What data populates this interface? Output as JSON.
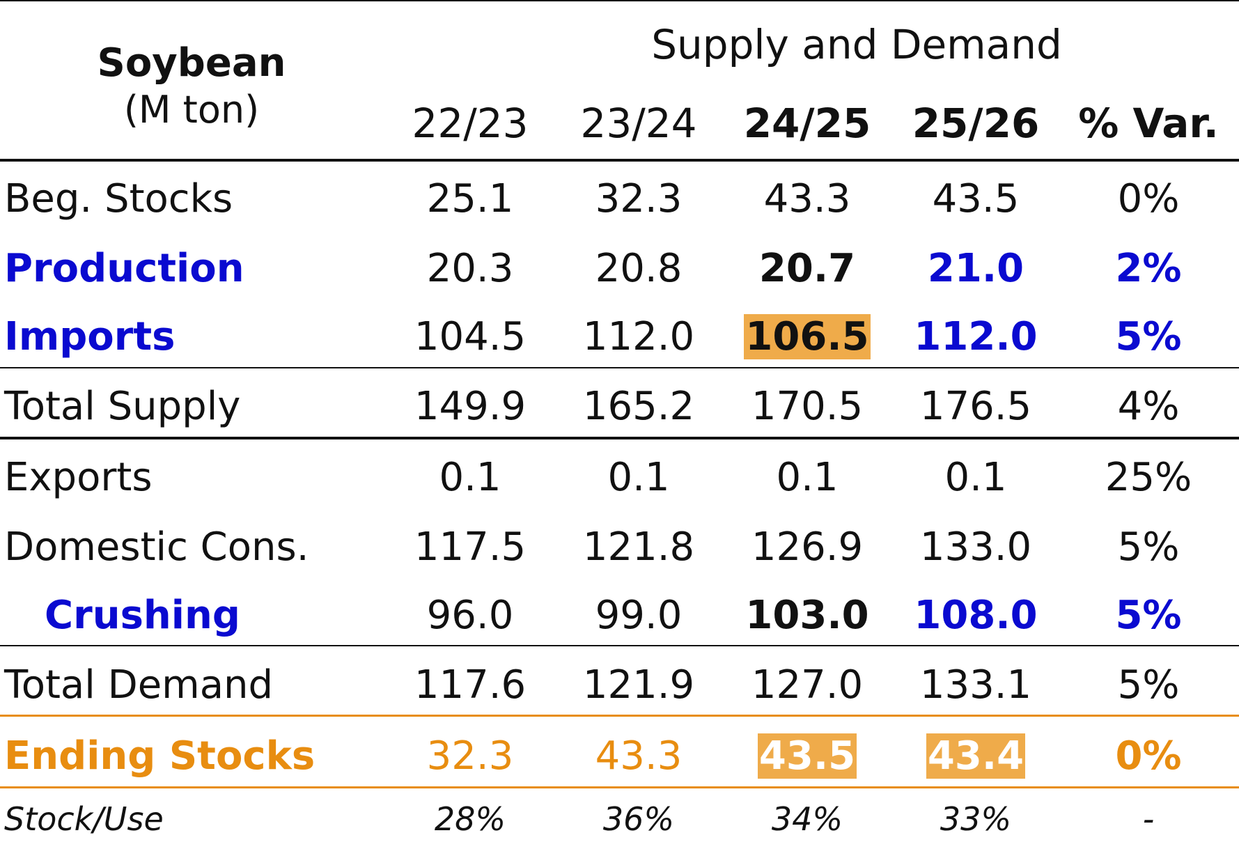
{
  "header": {
    "title": "Soybean",
    "unit": "(M ton)",
    "group": "Supply and Demand",
    "columns": [
      "22/23",
      "23/24",
      "24/25",
      "25/26",
      "% Var."
    ]
  },
  "rows": [
    {
      "label": "Beg. Stocks",
      "values": [
        "25.1",
        "32.3",
        "43.3",
        "43.5",
        "0%"
      ]
    },
    {
      "label": "Production",
      "values": [
        "20.3",
        "20.8",
        "20.7",
        "21.0",
        "2%"
      ]
    },
    {
      "label": "Imports",
      "values": [
        "104.5",
        "112.0",
        "106.5",
        "112.0",
        "5%"
      ]
    },
    {
      "label": "Total Supply",
      "values": [
        "149.9",
        "165.2",
        "170.5",
        "176.5",
        "4%"
      ]
    },
    {
      "label": "Exports",
      "values": [
        "0.1",
        "0.1",
        "0.1",
        "0.1",
        "25%"
      ]
    },
    {
      "label": "Domestic Cons.",
      "values": [
        "117.5",
        "121.8",
        "126.9",
        "133.0",
        "5%"
      ]
    },
    {
      "label": "Crushing",
      "values": [
        "96.0",
        "99.0",
        "103.0",
        "108.0",
        "5%"
      ]
    },
    {
      "label": "Total Demand",
      "values": [
        "117.6",
        "121.9",
        "127.0",
        "133.1",
        "5%"
      ]
    },
    {
      "label": "Ending Stocks",
      "values": [
        "32.3",
        "43.3",
        "43.5",
        "43.4",
        "0%"
      ]
    },
    {
      "label": "Stock/Use",
      "values": [
        "28%",
        "36%",
        "34%",
        "33%",
        "-"
      ]
    }
  ],
  "colors": {
    "highlight_blue": "#0a0ad0",
    "highlight_orange": "#e88d10",
    "cell_fill": "#efab4a"
  }
}
